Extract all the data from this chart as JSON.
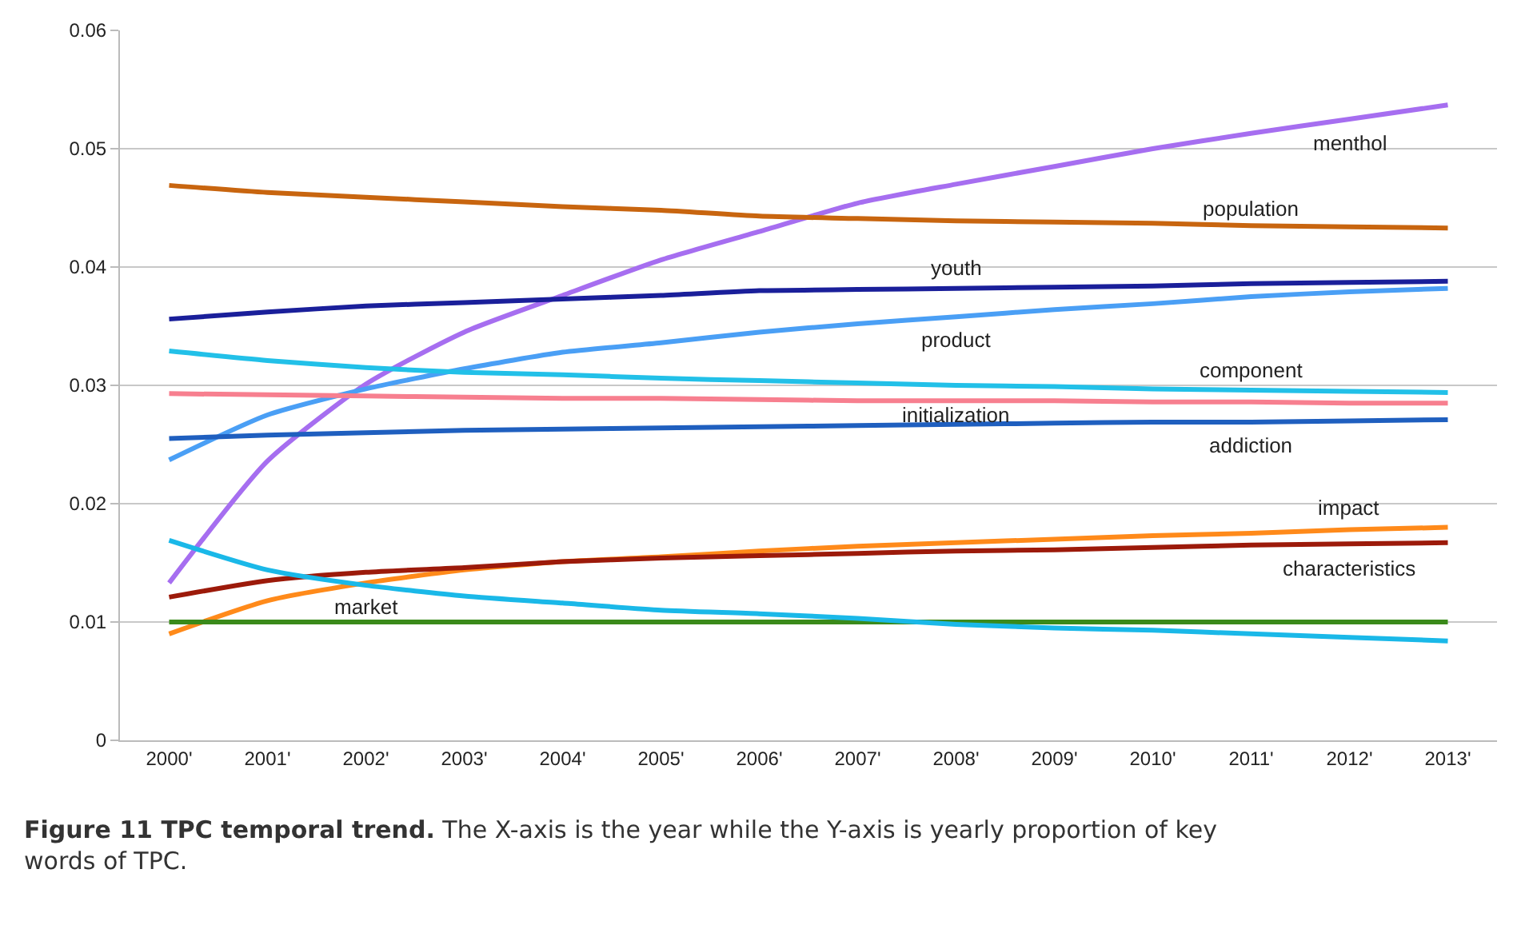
{
  "chart_data": {
    "type": "line",
    "categories": [
      "2000'",
      "2001'",
      "2002'",
      "2003'",
      "2004'",
      "2005'",
      "2006'",
      "2007'",
      "2008'",
      "2009'",
      "2010'",
      "2011'",
      "2012'",
      "2013'"
    ],
    "ylim": [
      0,
      0.06
    ],
    "yticks": [
      0,
      0.01,
      0.02,
      0.03,
      0.04,
      0.05,
      0.06
    ],
    "grid": "y",
    "legend": false,
    "marker": "none",
    "line_style": "solid",
    "series": [
      {
        "name": "menthol",
        "color": "#a66ef0",
        "values": [
          0.0133,
          0.0236,
          0.0301,
          0.0345,
          0.0376,
          0.0406,
          0.043,
          0.0454,
          0.047,
          0.0485,
          0.05,
          0.0513,
          0.0525,
          0.0537
        ]
      },
      {
        "name": "population",
        "color": "#c8650f",
        "values": [
          0.0469,
          0.0463,
          0.0459,
          0.0455,
          0.0451,
          0.0448,
          0.0443,
          0.0441,
          0.0439,
          0.0438,
          0.0437,
          0.0435,
          0.0434,
          0.0433
        ]
      },
      {
        "name": "youth",
        "color": "#1a1f9a",
        "values": [
          0.0356,
          0.0362,
          0.0367,
          0.037,
          0.0373,
          0.0376,
          0.038,
          0.0381,
          0.0382,
          0.0383,
          0.0384,
          0.0386,
          0.0387,
          0.0388
        ]
      },
      {
        "name": "product",
        "color": "#4a9ff5",
        "values": [
          0.0237,
          0.0275,
          0.0297,
          0.0314,
          0.0328,
          0.0336,
          0.0345,
          0.0352,
          0.0358,
          0.0364,
          0.0369,
          0.0375,
          0.0379,
          0.0382
        ]
      },
      {
        "name": "component",
        "color": "#22c0e8",
        "values": [
          0.0329,
          0.0321,
          0.0315,
          0.0311,
          0.0309,
          0.0306,
          0.0304,
          0.0302,
          0.03,
          0.0299,
          0.0297,
          0.0296,
          0.0295,
          0.0294
        ]
      },
      {
        "name": "initialization",
        "color": "#f77f8f",
        "values": [
          0.0293,
          0.0292,
          0.0291,
          0.029,
          0.0289,
          0.0289,
          0.0288,
          0.0287,
          0.0287,
          0.0287,
          0.0286,
          0.0286,
          0.0285,
          0.0285
        ]
      },
      {
        "name": "addiction",
        "color": "#1f5fbf",
        "values": [
          0.0255,
          0.0258,
          0.026,
          0.0262,
          0.0263,
          0.0264,
          0.0265,
          0.0266,
          0.0267,
          0.0268,
          0.0269,
          0.0269,
          0.027,
          0.0271
        ]
      },
      {
        "name": "impact",
        "color": "#ff8a1a",
        "values": [
          0.009,
          0.0118,
          0.0133,
          0.0144,
          0.0151,
          0.0155,
          0.016,
          0.0164,
          0.0167,
          0.017,
          0.0173,
          0.0175,
          0.0178,
          0.018
        ]
      },
      {
        "name": "characteristics",
        "color": "#9c1a0a",
        "values": [
          0.0121,
          0.0135,
          0.0142,
          0.0146,
          0.0151,
          0.0154,
          0.0156,
          0.0158,
          0.016,
          0.0161,
          0.0163,
          0.0165,
          0.0166,
          0.0167
        ]
      },
      {
        "name": "market",
        "color": "#3a8a1a",
        "values": [
          0.01,
          0.01,
          0.01,
          0.01,
          0.01,
          0.01,
          0.01,
          0.01,
          0.01,
          0.01,
          0.01,
          0.01,
          0.01,
          0.01
        ]
      },
      {
        "color": "#1ab8e8",
        "values": [
          0.0169,
          0.0144,
          0.0131,
          0.0122,
          0.0116,
          0.011,
          0.0107,
          0.0103,
          0.0098,
          0.0095,
          0.0093,
          0.009,
          0.0087,
          0.0084
        ]
      }
    ],
    "annotations": [
      "Figure 11 TPC temporal trend. The X-axis is the year while the Y-axis is yearly proportion of key words of TPC."
    ]
  }
}
